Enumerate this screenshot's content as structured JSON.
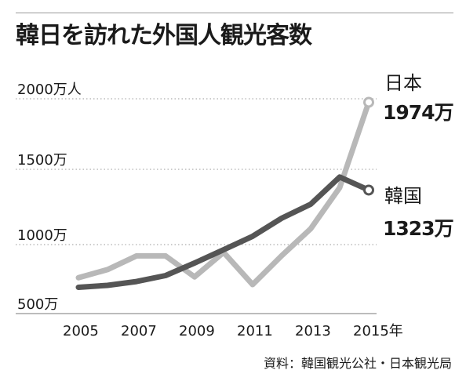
{
  "chart_data": {
    "type": "line",
    "title": "韓日を訪れた外国人観光客数",
    "x": [
      2005,
      2006,
      2007,
      2008,
      2009,
      2010,
      2011,
      2012,
      2013,
      2014,
      2015
    ],
    "x_tick_labels": [
      "2005",
      "2007",
      "2009",
      "2011",
      "2013",
      "2015年"
    ],
    "x_tick_values": [
      2005,
      2007,
      2009,
      2011,
      2013,
      2015
    ],
    "y_tick_labels": [
      "500万",
      "1000万",
      "1500万",
      "2000万人"
    ],
    "y_tick_values": [
      500,
      1000,
      1500,
      2000
    ],
    "ylim": [
      450,
      2100
    ],
    "grid": "horizontal dotted",
    "series": [
      {
        "name": "日本",
        "end_label": "1974万",
        "color": "#b8b8b8",
        "values": [
          673,
          733,
          835,
          835,
          679,
          861,
          622,
          836,
          1036,
          1341,
          1974
        ]
      },
      {
        "name": "韓国",
        "end_label": "1323万",
        "color": "#555555",
        "values": [
          602,
          616,
          645,
          689,
          782,
          880,
          980,
          1114,
          1218,
          1420,
          1323
        ]
      }
    ],
    "source": "資料：韓国観光公社・日本観光局"
  }
}
